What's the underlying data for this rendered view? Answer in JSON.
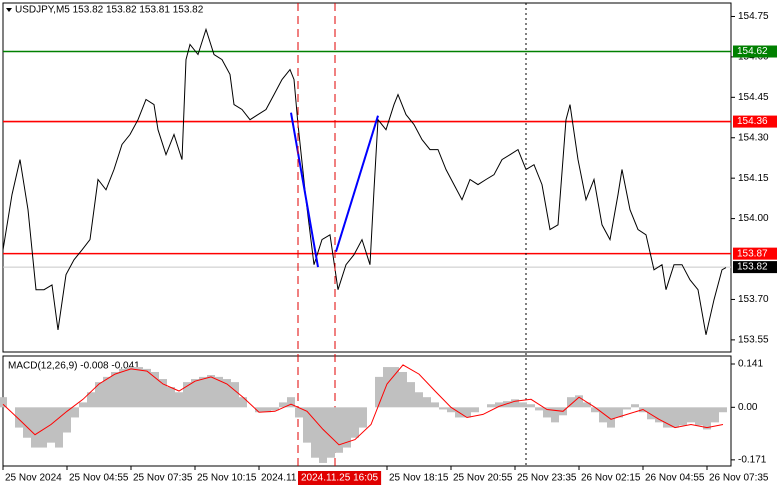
{
  "chart_data": [
    {
      "type": "line",
      "title": "USDJPY,M5  153.82 153.82 153.81 153.82",
      "color": "#000000",
      "x": [
        0,
        4.5,
        8.5,
        12.5,
        16.5,
        20.5,
        24.5,
        27.5,
        31.5,
        35.5,
        39.5,
        43.5,
        47.5,
        51.5,
        55.5,
        59.5,
        63.5,
        67.5,
        71.5,
        75.5,
        77.5,
        81.5,
        85.5,
        89.5,
        91.5,
        93.5,
        97.5,
        101.5,
        105.5,
        109.5,
        113.5,
        115.5,
        119.5,
        123.5,
        127.5,
        131.5,
        135.5,
        139.5,
        143.5,
        145.5,
        147.5,
        151.5,
        155.5,
        159.5,
        163.5,
        167.5,
        171.5,
        175.5,
        179.5,
        183.5,
        185.5,
        187.5,
        191.5,
        195.5,
        197.5,
        201.5,
        205.5,
        209.5,
        213.5,
        217.5,
        221.5,
        225.5,
        229.5,
        233.5,
        237.5,
        241.5,
        245.5,
        249.5,
        253.5,
        257.5,
        261.5,
        265.5,
        269.5,
        273.5,
        277.5,
        281.5,
        283.5,
        287.5,
        291.5,
        295.5,
        299.5,
        303.5,
        307.5,
        309.5,
        313.5,
        317.5,
        321.5,
        325.5,
        329.5,
        331.5,
        335.5,
        339.5,
        343.5,
        347.5,
        351.5,
        355.5,
        359.5,
        361.5
      ],
      "values": [
        153.884,
        154.089,
        154.219,
        154.033,
        153.736,
        153.736,
        153.754,
        153.587,
        153.792,
        153.847,
        153.884,
        153.922,
        154.145,
        154.107,
        154.182,
        154.275,
        154.312,
        154.367,
        154.442,
        154.423,
        154.33,
        154.237,
        154.312,
        154.219,
        154.59,
        154.646,
        154.609,
        154.702,
        154.609,
        154.59,
        154.535,
        154.423,
        154.405,
        154.367,
        154.386,
        154.405,
        154.46,
        154.516,
        154.553,
        154.516,
        154.349,
        154.07,
        153.829,
        153.922,
        153.94,
        153.736,
        153.829,
        153.866,
        153.922,
        153.829,
        154.107,
        154.367,
        154.33,
        154.423,
        154.46,
        154.386,
        154.349,
        154.293,
        154.256,
        154.256,
        154.182,
        154.126,
        154.07,
        154.145,
        154.126,
        154.145,
        154.163,
        154.219,
        154.237,
        154.256,
        154.182,
        154.2,
        154.126,
        153.959,
        153.977,
        154.367,
        154.423,
        154.219,
        154.07,
        154.145,
        153.977,
        153.922,
        154.089,
        154.182,
        154.033,
        153.959,
        153.94,
        153.81,
        153.829,
        153.736,
        153.829,
        153.829,
        153.773,
        153.736,
        153.569,
        153.699,
        153.81,
        153.818
      ],
      "xlim": [
        0,
        364
      ],
      "ylim": [
        153.505,
        154.8
      ],
      "yticks": [
        154.75,
        {
          "value": 154.6,
          "label": "154.60"
        },
        154.45,
        {
          "value": 154.3,
          "label": "154.30"
        },
        154.15,
        {
          "value": 154.0,
          "label": "154.00"
        },
        {
          "value": 153.7,
          "label": "153.70"
        },
        153.55
      ],
      "xticks": [
        {
          "value": 0,
          "label": "25 Nov 2024"
        },
        {
          "value": 32,
          "label": "25 Nov 04:55"
        },
        {
          "value": 64,
          "label": "25 Nov 07:35"
        },
        {
          "value": 96,
          "label": "25 Nov 10:15"
        },
        {
          "value": 128,
          "label": "2024.11"
        },
        {
          "value": 192,
          "label": "25 Nov 18:15"
        },
        {
          "value": 224,
          "label": "25 Nov 20:55"
        },
        {
          "value": 256,
          "label": "25 Nov 23:35"
        },
        {
          "value": 288,
          "label": "26 Nov 02:15"
        },
        {
          "value": 320,
          "label": "26 Nov 04:55"
        },
        {
          "value": 352,
          "label": "26 Nov 07:35"
        }
      ],
      "levels": [
        {
          "value": 154.62,
          "color": "#008000",
          "box_color": "#008000"
        },
        {
          "value": 154.36,
          "color": "#ff0000",
          "box_color": "#ff0000"
        },
        {
          "value": 153.87,
          "color": "#ff0000",
          "box_color": "#ff0000"
        },
        {
          "value": 153.82,
          "color": "#c8c8c8",
          "box_color": "#000000"
        }
      ],
      "trend_lines": [
        {
          "color": "#0000ff",
          "x": [
            144,
            157.5
          ],
          "values": [
            154.393,
            153.82
          ]
        },
        {
          "color": "#0000ff",
          "x": [
            166.5,
            187.5
          ],
          "values": [
            153.877,
            154.382
          ]
        }
      ],
      "vlines": [
        {
          "x": 147.5,
          "color": "#e00000",
          "style": "dashed",
          "label": "2024.11.25 16:05"
        },
        {
          "x": 166,
          "color": "#e00000",
          "style": "dashed"
        },
        {
          "x": 261.5,
          "color": "#000000",
          "style": "dotted"
        }
      ]
    },
    {
      "type": "macd",
      "title": "MACD(12,26,9) -0.008 -0.041",
      "color": "#c0c0c0",
      "x": [
        0,
        4,
        8,
        12,
        16,
        20,
        24,
        28,
        32,
        36,
        40,
        44,
        48,
        52,
        56,
        60,
        64,
        68,
        72,
        76,
        80,
        84,
        88,
        92,
        96,
        100,
        104,
        108,
        112,
        116,
        120,
        124,
        128,
        132,
        136,
        140,
        144,
        148,
        152,
        156,
        160,
        164,
        168,
        172,
        176,
        180,
        184,
        188,
        192,
        196,
        200,
        204,
        208,
        212,
        216,
        220,
        224,
        228,
        232,
        236,
        240,
        244,
        248,
        252,
        256,
        260,
        264,
        268,
        272,
        276,
        280,
        284,
        288,
        292,
        296,
        300,
        304,
        308,
        312,
        316,
        320,
        324,
        328,
        332,
        336,
        340,
        344,
        348,
        352,
        356,
        360
      ],
      "values": [
        0.033,
        0,
        -0.066,
        -0.099,
        -0.131,
        -0.131,
        -0.115,
        -0.131,
        -0.082,
        -0.033,
        0.016,
        0.049,
        0.082,
        0.099,
        0.115,
        0.125,
        0.131,
        0.131,
        0.125,
        0.115,
        0.092,
        0.066,
        0.049,
        0.082,
        0.092,
        0.099,
        0.105,
        0.099,
        0.092,
        0.082,
        0.033,
        0,
        -0.016,
        -0.016,
        -0.01,
        0.016,
        0.033,
        -0.033,
        -0.115,
        -0.164,
        -0.181,
        -0.164,
        -0.148,
        -0.131,
        -0.099,
        -0.066,
        0,
        0.099,
        0.131,
        0.131,
        0.115,
        0.082,
        0.049,
        0.033,
        0.016,
        -0.007,
        -0.016,
        -0.033,
        -0.033,
        -0.016,
        0,
        0.01,
        0.016,
        0.02,
        0.026,
        0.016,
        0.01,
        -0.01,
        -0.033,
        -0.049,
        -0.026,
        0.033,
        0.039,
        0.016,
        -0.016,
        -0.049,
        -0.066,
        -0.033,
        -0.007,
        0.01,
        -0.016,
        -0.039,
        -0.049,
        -0.066,
        -0.066,
        -0.059,
        -0.049,
        -0.059,
        -0.072,
        -0.049,
        -0.016
      ],
      "signal": {
        "color": "#ff0000",
        "x": [
          0,
          8,
          16,
          24,
          32,
          40,
          48,
          56,
          64,
          72,
          80,
          88,
          96,
          104,
          112,
          120,
          128,
          136,
          144,
          152,
          160,
          168,
          176,
          184,
          192,
          200,
          208,
          216,
          224,
          232,
          240,
          248,
          256,
          264,
          272,
          280,
          288,
          296,
          304,
          312,
          320,
          328,
          336,
          344,
          352,
          360
        ],
        "values": [
          0.01,
          -0.039,
          -0.089,
          -0.056,
          -0.013,
          0.026,
          0.076,
          0.108,
          0.125,
          0.118,
          0.076,
          0.053,
          0.085,
          0.099,
          0.076,
          0.033,
          -0.016,
          -0.013,
          0.01,
          -0.013,
          -0.072,
          -0.122,
          -0.105,
          -0.056,
          0.076,
          0.138,
          0.108,
          0.053,
          0,
          -0.033,
          -0.023,
          0.003,
          0.02,
          0.026,
          -0.007,
          -0.013,
          0.033,
          0,
          -0.039,
          -0.023,
          -0.007,
          -0.039,
          -0.066,
          -0.056,
          -0.066,
          -0.056
        ]
      },
      "ylim": [
        -0.191,
        0.167
      ],
      "yticks": [
        0.141,
        {
          "value": 0,
          "label": "0.00"
        },
        -0.171
      ]
    }
  ]
}
